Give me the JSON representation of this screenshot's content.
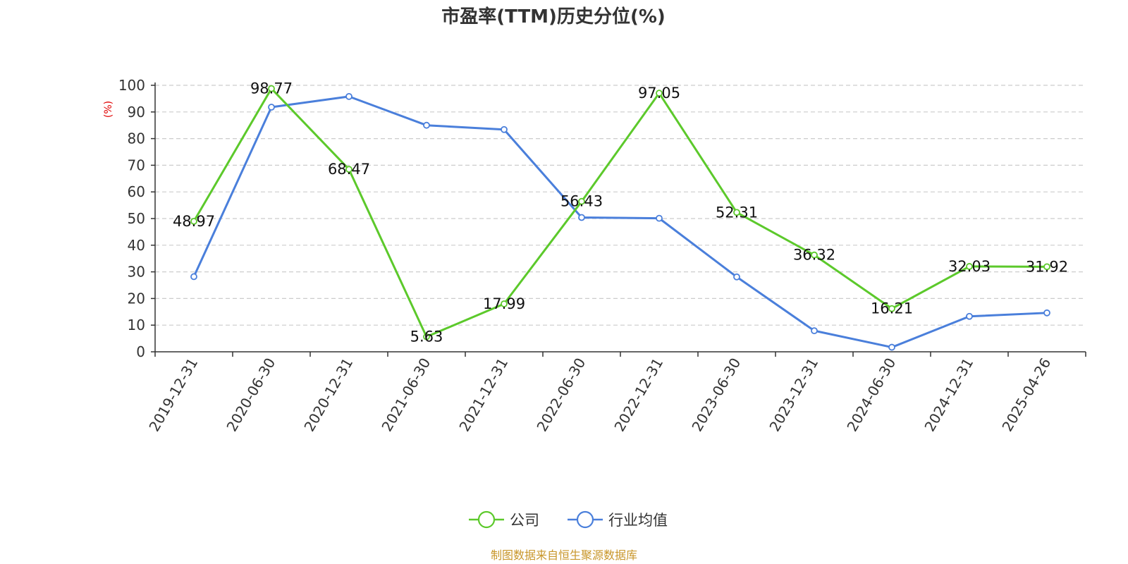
{
  "chart_data": {
    "type": "line",
    "title": "市盈率(TTM)历史分位(%)",
    "yunit": "(%)",
    "ylim": [
      0,
      100
    ],
    "yticks": [
      0,
      10,
      20,
      30,
      40,
      50,
      60,
      70,
      80,
      90,
      100
    ],
    "grid": true,
    "legend_position": "bottom",
    "categories": [
      "2019-12-31",
      "2020-06-30",
      "2020-12-31",
      "2021-06-30",
      "2021-12-31",
      "2022-06-30",
      "2022-12-31",
      "2023-06-30",
      "2023-12-31",
      "2024-06-30",
      "2024-12-31",
      "2025-04-26"
    ],
    "series": [
      {
        "name": "公司",
        "color": "#5cc92b",
        "show_labels": true,
        "values": [
          48.97,
          98.77,
          68.47,
          5.63,
          17.99,
          56.43,
          97.05,
          52.31,
          36.32,
          16.21,
          32.03,
          31.92
        ],
        "labels": [
          "48.97",
          "98.77",
          "68.47",
          "5.63",
          "17.99",
          "56.43",
          "97.05",
          "52.31",
          "36.32",
          "16.21",
          "32.03",
          "31.92"
        ]
      },
      {
        "name": "行业均值",
        "color": "#4a7fdb",
        "show_labels": false,
        "values": [
          28.2,
          91.8,
          95.8,
          85.0,
          83.4,
          50.4,
          50.1,
          28.1,
          7.9,
          1.7,
          13.3,
          14.6
        ]
      }
    ],
    "source": "制图数据来自恒生聚源数据库"
  }
}
